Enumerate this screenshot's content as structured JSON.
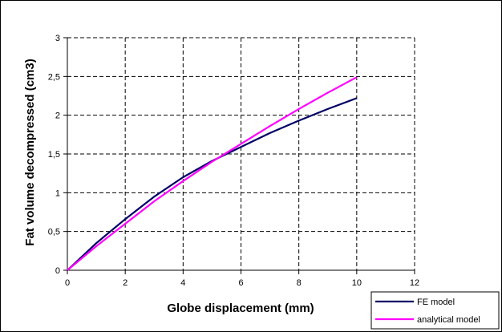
{
  "chart_data": {
    "type": "line",
    "xlabel": "Globe displacement (mm)",
    "ylabel": "Fat volume decompressed (cm3)",
    "xlim": [
      0,
      12
    ],
    "ylim": [
      0,
      3
    ],
    "x_ticks": [
      "0",
      "2",
      "4",
      "6",
      "8",
      "10",
      "12"
    ],
    "y_ticks": [
      "0",
      "0,5",
      "1",
      "1,5",
      "2",
      "2,5",
      "3"
    ],
    "grid": true,
    "legend_position": "bottom-right",
    "series": [
      {
        "name": "FE model",
        "color": "#000066",
        "x": [
          0,
          1,
          2,
          3,
          4,
          5,
          6,
          7,
          8,
          9,
          10
        ],
        "y": [
          0,
          0.35,
          0.66,
          0.95,
          1.2,
          1.41,
          1.59,
          1.77,
          1.93,
          2.08,
          2.22
        ]
      },
      {
        "name": "analytical model",
        "color": "#ff00ff",
        "x": [
          0,
          1,
          2,
          3,
          4,
          5,
          6,
          7,
          8,
          9,
          10
        ],
        "y": [
          0,
          0.31,
          0.6,
          0.89,
          1.15,
          1.4,
          1.63,
          1.86,
          2.08,
          2.29,
          2.49
        ]
      }
    ]
  }
}
